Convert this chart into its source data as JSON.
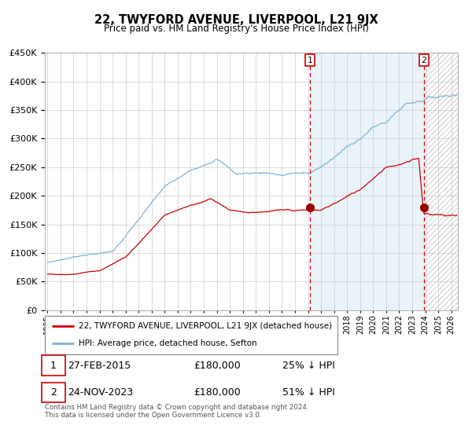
{
  "title": "22, TWYFORD AVENUE, LIVERPOOL, L21 9JX",
  "subtitle": "Price paid vs. HM Land Registry's House Price Index (HPI)",
  "ylim": [
    0,
    450000
  ],
  "yticks": [
    0,
    50000,
    100000,
    150000,
    200000,
    250000,
    300000,
    350000,
    400000,
    450000
  ],
  "hpi_color": "#7ab3d4",
  "price_color": "#cc0000",
  "marker_color": "#990000",
  "vline_color": "#cc0000",
  "grid_color": "#cccccc",
  "bg_color": "#ddeaf7",
  "sale1_date": 2015.15,
  "sale1_price": 180000,
  "sale2_date": 2023.9,
  "sale2_price": 180000,
  "legend_line1": "22, TWYFORD AVENUE, LIVERPOOL, L21 9JX (detached house)",
  "legend_line2": "HPI: Average price, detached house, Sefton",
  "table_row1": [
    "1",
    "27-FEB-2015",
    "£180,000",
    "25% ↓ HPI"
  ],
  "table_row2": [
    "2",
    "24-NOV-2023",
    "£180,000",
    "51% ↓ HPI"
  ],
  "footnote": "Contains HM Land Registry data © Crown copyright and database right 2024.\nThis data is licensed under the Open Government Licence v3.0.",
  "xstart": 1995,
  "xend": 2026
}
